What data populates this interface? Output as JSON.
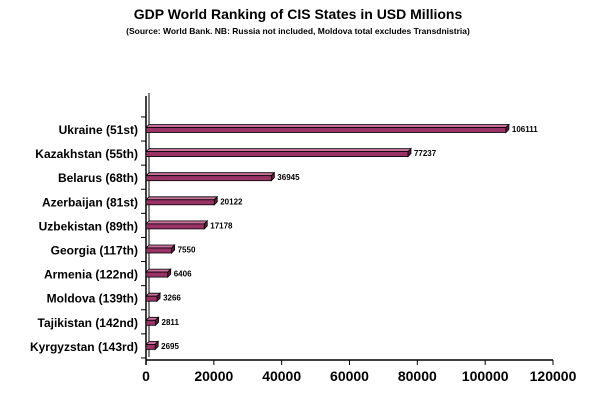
{
  "chart_data": {
    "type": "bar",
    "orientation": "horizontal",
    "title": "GDP World Ranking of CIS States in USD Millions",
    "subtitle": "(Source: World Bank. NB: Russia not included, Moldova total excludes Transdnistria)",
    "categories": [
      "Ukraine (51st)",
      "Kazakhstan (55th)",
      "Belarus (68th)",
      "Azerbaijan (81st)",
      "Uzbekistan (89th)",
      "Georgia (117th)",
      "Armenia (122nd)",
      "Moldova (139th)",
      "Tajikistan (142nd)",
      "Kyrgyzstan (143rd)"
    ],
    "values": [
      106111,
      77237,
      36945,
      20122,
      17178,
      7550,
      6406,
      3266,
      2811,
      2695
    ],
    "data_labels": [
      "106111",
      "77237",
      "36945",
      "20122",
      "17178",
      "7550",
      "6406",
      "3266",
      "2811",
      "2695"
    ],
    "xlim": [
      0,
      120000
    ],
    "x_ticks": [
      0,
      20000,
      40000,
      60000,
      80000,
      100000,
      120000
    ],
    "x_tick_labels": [
      "0",
      "20000",
      "40000",
      "60000",
      "80000",
      "100000",
      "120000"
    ],
    "grid": false,
    "legend": "none",
    "colors": {
      "bar_face": "#993366",
      "bar_top": "#c86f9c",
      "bar_side": "#5a1c3c",
      "outline": "#000000"
    }
  }
}
